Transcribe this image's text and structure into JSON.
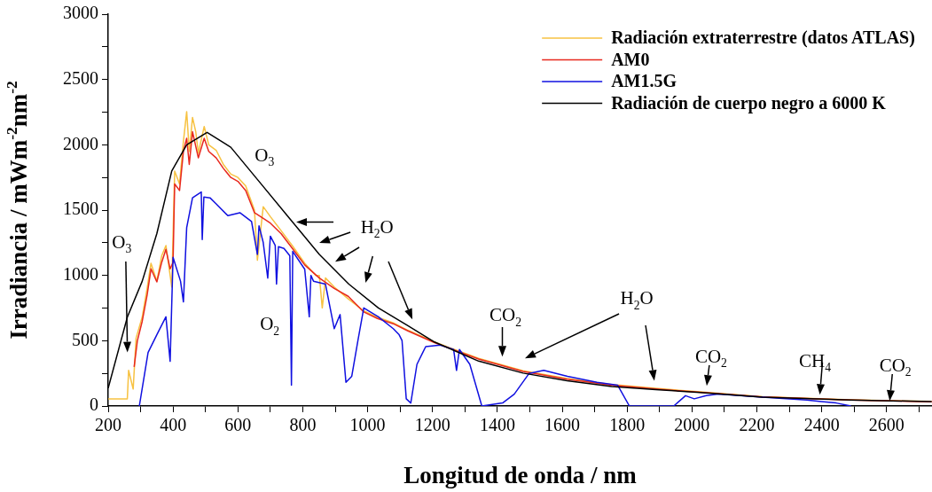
{
  "chart_data": {
    "type": "line",
    "xlabel": "Longitud de onda / nm",
    "ylabel": "Irradiancia / mWm$^{-2}$nm$^{-2}$",
    "xlim": [
      200,
      2740
    ],
    "ylim": [
      0,
      3000
    ],
    "xticks": [
      200,
      {
        "value": 300,
        "label": null
      },
      400,
      {
        "value": 500,
        "label": null
      },
      600,
      {
        "value": 700,
        "label": null
      },
      800,
      {
        "value": 900,
        "label": null
      },
      1000,
      {
        "value": 1100,
        "label": null
      },
      1200,
      {
        "value": 1300,
        "label": null
      },
      1400,
      {
        "value": 1500,
        "label": null
      },
      1600,
      {
        "value": 1700,
        "label": null
      },
      1800,
      {
        "value": 1900,
        "label": null
      },
      2000,
      {
        "value": 2100,
        "label": null
      },
      2200,
      {
        "value": 2300,
        "label": null
      },
      2400,
      {
        "value": 2500,
        "label": null
      },
      2600,
      {
        "value": 2700,
        "label": null
      }
    ],
    "yticks": [
      0,
      {
        "value": 250,
        "label": null
      },
      500,
      {
        "value": 750,
        "label": null
      },
      1000,
      {
        "value": 1250,
        "label": null
      },
      1500,
      {
        "value": 1750,
        "label": null
      },
      2000,
      {
        "value": 2250,
        "label": null
      },
      2500,
      {
        "value": 2750,
        "label": null
      },
      3000
    ],
    "grid": false,
    "legend": "top right",
    "marker": "none",
    "line_style": "solid",
    "series": [
      {
        "name": "Radiación extraterrestre (datos ATLAS)",
        "color": "#f7c242",
        "x": [
          200,
          259,
          263,
          277,
          286,
          305,
          320,
          332,
          350,
          365,
          378,
          391,
          396,
          405,
          420,
          432,
          442,
          450,
          460,
          470,
          478,
          496,
          510,
          533,
          555,
          578,
          600,
          624,
          651,
          660,
          678,
          700,
          733,
          770,
          806,
          840,
          851,
          860,
          870,
          897,
          940,
          988,
          1030,
          1079,
          1124,
          1206,
          1342,
          1479,
          1615,
          1752,
          1888,
          2025,
          2217,
          2490,
          2739
        ],
        "values": [
          55,
          55,
          273,
          130,
          520,
          683,
          900,
          1093,
          956,
          1150,
          1229,
          1000,
          911,
          1799,
          1700,
          2027,
          2254,
          1950,
          2209,
          2100,
          1936,
          2140,
          2000,
          1958,
          1850,
          1776,
          1750,
          1685,
          1500,
          1116,
          1526,
          1450,
          1343,
          1220,
          1093,
          1000,
          1000,
          751,
          980,
          911,
          820,
          728,
          680,
          637,
          580,
          490,
          365,
          270,
          210,
          165,
          135,
          108,
          72,
          47,
          35
        ]
      },
      {
        "name": "AM0",
        "color": "#e8281e",
        "x": [
          280,
          290,
          305,
          320,
          332,
          350,
          365,
          378,
          391,
          400,
          405,
          420,
          432,
          442,
          450,
          460,
          478,
          496,
          510,
          533,
          555,
          578,
          600,
          624,
          651,
          670,
          700,
          733,
          770,
          806,
          851,
          897,
          940,
          988,
          1030,
          1079,
          1124,
          1206,
          1342,
          1479,
          1615,
          1752,
          1888,
          2025,
          2217,
          2490,
          2739
        ],
        "values": [
          300,
          500,
          650,
          850,
          1050,
          950,
          1100,
          1200,
          1050,
          1100,
          1700,
          1650,
          1950,
          2050,
          1850,
          2100,
          1900,
          2050,
          1950,
          1900,
          1820,
          1750,
          1720,
          1650,
          1480,
          1450,
          1400,
          1320,
          1200,
          1080,
          980,
          900,
          840,
          720,
          670,
          630,
          575,
          485,
          360,
          265,
          205,
          160,
          130,
          105,
          70,
          45,
          33
        ]
      },
      {
        "name": "AM1.5G",
        "color": "#1010e0",
        "x": [
          296,
          323,
          350,
          378,
          391,
          400,
          423,
          432,
          442,
          460,
          487,
          490,
          495,
          514,
          533,
          569,
          606,
          642,
          660,
          665,
          678,
          692,
          700,
          715,
          719,
          725,
          742,
          760,
          765,
          769,
          806,
          820,
          825,
          833,
          870,
          897,
          915,
          933,
          951,
          970,
          988,
          1033,
          1079,
          1097,
          1106,
          1119,
          1133,
          1152,
          1170,
          1179,
          1224,
          1265,
          1274,
          1283,
          1315,
          1352,
          1416,
          1452,
          1498,
          1543,
          1616,
          1707,
          1771,
          1807,
          1944,
          1980,
          2007,
          2044,
          2081,
          2217,
          2354,
          2399,
          2445,
          2490
        ],
        "values": [
          0,
          410,
          546,
          683,
          342,
          1139,
          956,
          797,
          1365,
          1594,
          1639,
          1275,
          1600,
          1594,
          1548,
          1457,
          1480,
          1412,
          1161,
          1380,
          1252,
          979,
          1300,
          1229,
          933,
          1220,
          1207,
          1150,
          160,
          1184,
          1047,
          683,
          1000,
          956,
          933,
          592,
          700,
          182,
          228,
          501,
          751,
          683,
          592,
          546,
          501,
          55,
          23,
          319,
          410,
          455,
          467,
          433,
          273,
          433,
          319,
          0,
          23,
          91,
          250,
          273,
          228,
          182,
          159,
          0,
          0,
          79,
          55,
          80,
          91,
          68,
          45,
          34,
          23,
          0
        ]
      },
      {
        "name": "Radiación de cuerpo negro a 6000 K",
        "color": "#000000",
        "x": [
          200,
          259,
          305,
          350,
          396,
          442,
          505,
          578,
          669,
          760,
          851,
          942,
          1033,
          1124,
          1206,
          1342,
          1479,
          1615,
          1752,
          1888,
          2025,
          2217,
          2490,
          2739
        ],
        "values": [
          137,
          680,
          956,
          1320,
          1799,
          2000,
          2095,
          1981,
          1708,
          1434,
          1161,
          933,
          751,
          615,
          490,
          344,
          252,
          194,
          149,
          126,
          103,
          68,
          45,
          34
        ]
      }
    ],
    "annotations": [
      "O$_{3}$",
      "O$_{3}$",
      "H$_{2}$O",
      "O$_{2}$",
      "CO$_{2}$",
      "H$_{2}$O",
      "CO$_{2}$",
      "CH$_{4}$",
      "CO$_{2}$"
    ]
  }
}
